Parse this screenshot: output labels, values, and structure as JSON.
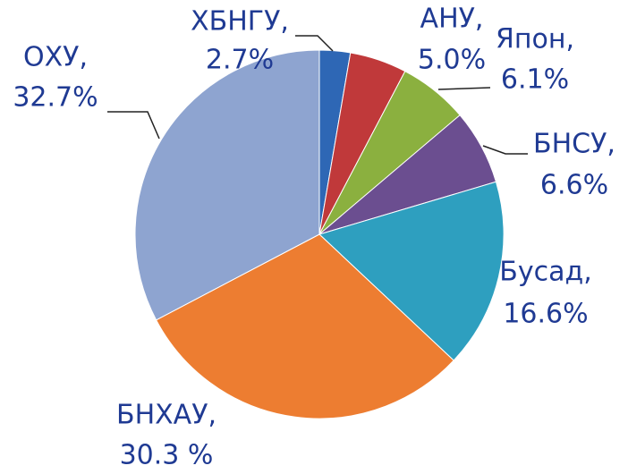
{
  "chart_data": {
    "type": "pie",
    "categories": [
      "ХБНГУ,",
      "АНУ,",
      "Япон,",
      "БНСУ,",
      "Бусад,",
      "БНХАУ,",
      "ОХУ,"
    ],
    "values": [
      2.7,
      5.0,
      6.1,
      6.6,
      16.6,
      30.3,
      32.7
    ],
    "value_labels": [
      "2.7%",
      "5.0%",
      "6.1%",
      "6.6%",
      "16.6%",
      "30.3 %",
      "32.7%"
    ],
    "colors": [
      "#2e67b5",
      "#c0393a",
      "#8bb03f",
      "#6b4e90",
      "#2e9fbf",
      "#ed7d31",
      "#8ea4d0"
    ]
  }
}
